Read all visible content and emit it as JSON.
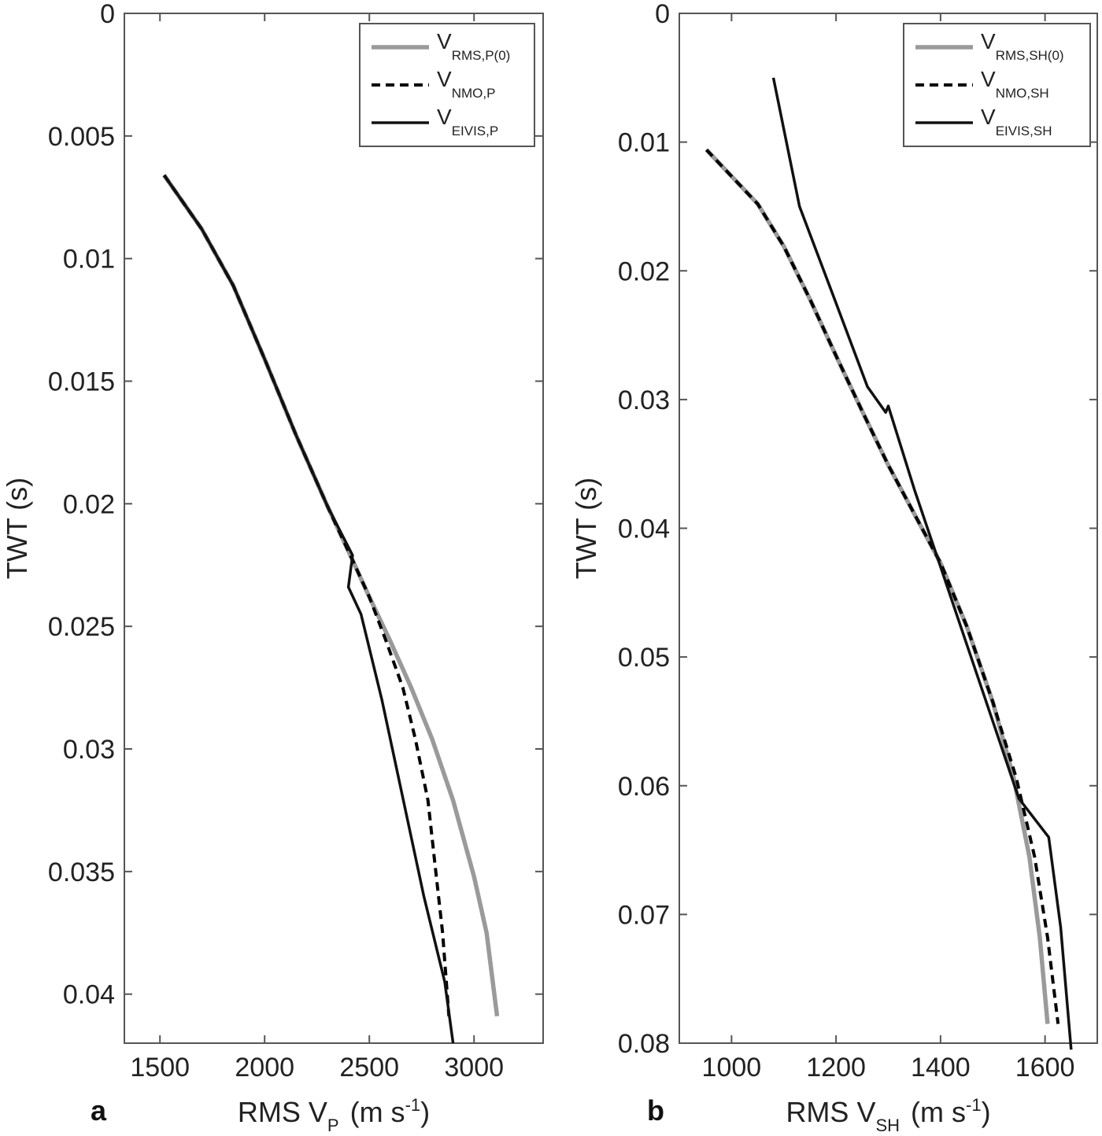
{
  "colors": {
    "rms": "#9a9a9a",
    "nmo": "#000000",
    "eivis": "#111111",
    "axes": "#555555"
  },
  "chart_data": [
    {
      "type": "line",
      "panel_label": "a",
      "xlabel": {
        "main": "RMS V",
        "sub": "P",
        "unit_pre": "(m s",
        "unit_sup": "-1",
        "unit_post": ")"
      },
      "ylabel": "TWT (s)",
      "xlim": [
        1330,
        3330
      ],
      "ylim": [
        0,
        0.042
      ],
      "y_reversed": true,
      "xticks": [
        1500,
        2000,
        2500,
        3000
      ],
      "yticks": [
        0,
        0.005,
        0.01,
        0.015,
        0.02,
        0.025,
        0.03,
        0.035,
        0.04
      ],
      "ytick_labels": [
        "0",
        "0.005",
        "0.01",
        "0.015",
        "0.02",
        "0.025",
        "0.03",
        "0.035",
        "0.04"
      ],
      "legend_position": "top-right",
      "series": [
        {
          "name": "V",
          "name_sub": "RMS,P(0)",
          "style": "rms",
          "x": [
            1520,
            1700,
            1850,
            2000,
            2150,
            2300,
            2420,
            2500,
            2600,
            2700,
            2800,
            2900,
            3000,
            3060,
            3110
          ],
          "y": [
            0.0066,
            0.0088,
            0.0111,
            0.0141,
            0.0172,
            0.0201,
            0.0223,
            0.0238,
            0.0256,
            0.0275,
            0.0296,
            0.0321,
            0.0352,
            0.0375,
            0.0409
          ]
        },
        {
          "name": "V",
          "name_sub": "NMO,P",
          "style": "nmo",
          "x": [
            1520,
            1700,
            1850,
            2000,
            2150,
            2300,
            2420,
            2500,
            2580,
            2660,
            2720,
            2780,
            2820,
            2850,
            2880
          ],
          "y": [
            0.0066,
            0.0088,
            0.0111,
            0.0141,
            0.0172,
            0.0201,
            0.0223,
            0.0238,
            0.0256,
            0.0275,
            0.0296,
            0.0321,
            0.0352,
            0.0375,
            0.0409
          ]
        },
        {
          "name": "V",
          "name_sub": "EIVIS,P",
          "style": "eivis",
          "x": [
            1520,
            1700,
            1850,
            2000,
            2150,
            2300,
            2420,
            2400,
            2460,
            2560,
            2660,
            2760,
            2860,
            2900
          ],
          "y": [
            0.0066,
            0.0088,
            0.0111,
            0.0141,
            0.0172,
            0.0201,
            0.0221,
            0.0234,
            0.0245,
            0.028,
            0.032,
            0.036,
            0.0395,
            0.042
          ]
        }
      ]
    },
    {
      "type": "line",
      "panel_label": "b",
      "xlabel": {
        "main": "RMS V",
        "sub": "SH",
        "unit_pre": "(m s",
        "unit_sup": "-1",
        "unit_post": ")"
      },
      "ylabel": "TWT (s)",
      "xlim": [
        900,
        1700
      ],
      "ylim": [
        0,
        0.08
      ],
      "y_reversed": true,
      "xticks": [
        1000,
        1200,
        1400,
        1600
      ],
      "yticks": [
        0,
        0.01,
        0.02,
        0.03,
        0.04,
        0.05,
        0.06,
        0.07,
        0.08
      ],
      "ytick_labels": [
        "0",
        "0.01",
        "0.02",
        "0.03",
        "0.04",
        "0.05",
        "0.06",
        "0.07",
        "0.08"
      ],
      "legend_position": "top-right",
      "series": [
        {
          "name": "V",
          "name_sub": "RMS,SH(0)",
          "style": "rms",
          "x": [
            952,
            1050,
            1100,
            1150,
            1200,
            1250,
            1300,
            1350,
            1400,
            1450,
            1500,
            1540,
            1570,
            1590,
            1605
          ],
          "y": [
            0.0106,
            0.0148,
            0.0181,
            0.0222,
            0.0266,
            0.0309,
            0.0351,
            0.0389,
            0.0427,
            0.0476,
            0.0535,
            0.0594,
            0.0655,
            0.0718,
            0.0785
          ]
        },
        {
          "name": "V",
          "name_sub": "NMO,SH",
          "style": "nmo",
          "x": [
            952,
            1050,
            1100,
            1150,
            1200,
            1250,
            1300,
            1350,
            1400,
            1450,
            1500,
            1545,
            1580,
            1605,
            1625
          ],
          "y": [
            0.0106,
            0.0148,
            0.0181,
            0.0222,
            0.0266,
            0.0309,
            0.0351,
            0.0389,
            0.0427,
            0.0476,
            0.0535,
            0.0594,
            0.0655,
            0.0718,
            0.0785
          ]
        },
        {
          "name": "V",
          "name_sub": "EIVIS,SH",
          "style": "eivis",
          "x": [
            1080,
            1130,
            1200,
            1260,
            1295,
            1300,
            1350,
            1400,
            1450,
            1500,
            1550,
            1607,
            1630,
            1650
          ],
          "y": [
            0.005,
            0.015,
            0.0225,
            0.029,
            0.031,
            0.0305,
            0.037,
            0.043,
            0.049,
            0.055,
            0.061,
            0.064,
            0.071,
            0.0805
          ]
        }
      ]
    }
  ]
}
